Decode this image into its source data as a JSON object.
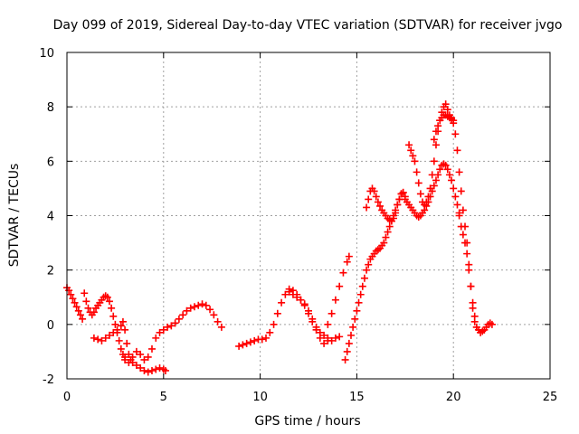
{
  "chart_data": {
    "type": "scatter",
    "title": "Day 099 of 2019, Sidereal Day-to-day VTEC variation (SDTVAR) for receiver jvgo",
    "xlabel": "GPS time / hours",
    "ylabel": "SDTVAR / TECUs",
    "xlim": [
      0,
      25
    ],
    "ylim": [
      -2,
      10
    ],
    "xticks": [
      "0",
      "5",
      "10",
      "15",
      "20",
      "25"
    ],
    "yticks": [
      "-2",
      "0",
      "2",
      "4",
      "6",
      "8",
      "10"
    ],
    "grid": true,
    "marker": "plus",
    "color": "#ff0000",
    "series": [
      {
        "x": [
          0.0,
          0.1,
          0.2,
          0.3,
          0.4,
          0.5,
          0.6,
          0.7,
          0.8
        ],
        "y": [
          1.35,
          1.25,
          1.1,
          0.95,
          0.8,
          0.65,
          0.5,
          0.35,
          0.2
        ]
      },
      {
        "x": [
          0.9,
          1.0,
          1.1,
          1.2,
          1.3,
          1.4,
          1.5,
          1.6,
          1.7,
          1.8,
          1.9,
          2.0,
          2.1,
          2.2,
          2.3,
          2.4,
          2.5,
          2.6,
          2.7,
          2.8,
          2.9,
          3.0
        ],
        "y": [
          1.15,
          0.85,
          0.6,
          0.45,
          0.35,
          0.45,
          0.6,
          0.7,
          0.8,
          0.9,
          1.0,
          1.05,
          1.0,
          0.85,
          0.6,
          0.3,
          0.0,
          -0.3,
          -0.6,
          -0.9,
          -1.1,
          -1.2
        ]
      },
      {
        "x": [
          1.4,
          1.6,
          1.8,
          2.0,
          2.2,
          2.4,
          2.6,
          2.8,
          2.9,
          3.0,
          3.1,
          3.2,
          3.3,
          3.4,
          3.6,
          3.8,
          4.0,
          4.2,
          4.4,
          4.6,
          4.8,
          5.0,
          5.1
        ],
        "y": [
          -0.5,
          -0.55,
          -0.6,
          -0.5,
          -0.4,
          -0.3,
          -0.2,
          -0.05,
          0.1,
          -0.2,
          -0.7,
          -1.1,
          -1.3,
          -1.4,
          -1.5,
          -1.6,
          -1.7,
          -1.75,
          -1.7,
          -1.65,
          -1.6,
          -1.65,
          -1.7
        ]
      },
      {
        "x": [
          3.0,
          3.2,
          3.4,
          3.6,
          3.8,
          4.0,
          4.2,
          4.4,
          4.6,
          4.8,
          5.0,
          5.2,
          5.4,
          5.6,
          5.8,
          6.0,
          6.2,
          6.4,
          6.6,
          6.8,
          7.0,
          7.2,
          7.4,
          7.6,
          7.8,
          8.0
        ],
        "y": [
          -1.3,
          -1.4,
          -1.2,
          -1.0,
          -1.1,
          -1.3,
          -1.2,
          -0.9,
          -0.5,
          -0.3,
          -0.2,
          -0.1,
          -0.05,
          0.05,
          0.2,
          0.35,
          0.5,
          0.6,
          0.65,
          0.7,
          0.75,
          0.7,
          0.55,
          0.35,
          0.1,
          -0.1
        ]
      },
      {
        "x": [
          8.9,
          9.1,
          9.3,
          9.5,
          9.7,
          9.9,
          10.1,
          10.3,
          10.5,
          10.7,
          10.9,
          11.1,
          11.3,
          11.5,
          11.7,
          11.9,
          12.1,
          12.3,
          12.5,
          12.7,
          12.9,
          13.1,
          13.3,
          13.5
        ],
        "y": [
          -0.8,
          -0.75,
          -0.7,
          -0.65,
          -0.6,
          -0.55,
          -0.55,
          -0.5,
          -0.3,
          0.0,
          0.4,
          0.8,
          1.1,
          1.3,
          1.25,
          1.1,
          0.9,
          0.7,
          0.4,
          0.1,
          -0.2,
          -0.5,
          -0.7,
          -0.6
        ]
      },
      {
        "x": [
          11.5,
          11.7,
          11.9,
          12.1,
          12.3,
          12.5,
          12.7,
          12.9,
          13.1,
          13.3,
          13.5,
          13.7,
          13.9,
          14.1
        ],
        "y": [
          1.2,
          1.1,
          1.0,
          0.9,
          0.75,
          0.5,
          0.2,
          -0.1,
          -0.3,
          -0.4,
          -0.5,
          -0.6,
          -0.5,
          -0.45
        ]
      },
      {
        "x": [
          13.5,
          13.7,
          13.9,
          14.1,
          14.3,
          14.5,
          14.6
        ],
        "y": [
          0.0,
          0.4,
          0.9,
          1.4,
          1.9,
          2.3,
          2.5
        ]
      },
      {
        "x": [
          14.4,
          14.5,
          14.6,
          14.7,
          14.8,
          14.9,
          15.0,
          15.1,
          15.2,
          15.3,
          15.4,
          15.5,
          15.6,
          15.7,
          15.8,
          15.9,
          16.0,
          16.1,
          16.2,
          16.3,
          16.4,
          16.5,
          16.6,
          16.7,
          16.8,
          16.9,
          17.0,
          17.1,
          17.2,
          17.3,
          17.4,
          17.5
        ],
        "y": [
          -1.3,
          -1.0,
          -0.7,
          -0.4,
          -0.1,
          0.2,
          0.5,
          0.8,
          1.1,
          1.4,
          1.7,
          2.0,
          2.2,
          2.4,
          2.5,
          2.6,
          2.7,
          2.75,
          2.8,
          2.9,
          3.0,
          3.2,
          3.4,
          3.6,
          3.8,
          4.0,
          4.2,
          4.4,
          4.6,
          4.8,
          4.85,
          4.7
        ]
      },
      {
        "x": [
          15.5,
          15.6,
          15.7,
          15.8,
          15.9,
          16.0,
          16.1,
          16.2,
          16.3,
          16.4,
          16.5,
          16.6,
          16.7,
          16.8,
          16.9,
          17.0,
          17.1,
          17.2,
          17.3,
          17.4
        ],
        "y": [
          4.3,
          4.6,
          4.9,
          5.0,
          4.9,
          4.7,
          4.5,
          4.35,
          4.2,
          4.1,
          4.0,
          3.9,
          3.85,
          3.8,
          3.9,
          4.1,
          4.4,
          4.6,
          4.8,
          4.85
        ]
      },
      {
        "x": [
          17.5,
          17.6,
          17.7,
          17.8,
          17.9,
          18.0,
          18.1,
          18.2,
          18.3,
          18.4,
          18.5,
          18.6,
          18.7,
          18.8,
          18.9,
          19.0,
          19.1,
          19.2,
          19.3,
          19.4,
          19.5,
          19.6,
          19.7,
          19.8,
          19.9,
          20.0,
          20.1,
          20.2,
          20.3
        ],
        "y": [
          4.6,
          4.5,
          4.4,
          4.3,
          4.2,
          4.1,
          4.0,
          3.95,
          4.0,
          4.1,
          4.2,
          4.35,
          4.5,
          4.7,
          4.9,
          5.1,
          5.3,
          5.5,
          5.7,
          5.85,
          5.9,
          5.85,
          5.7,
          5.5,
          5.3,
          5.0,
          4.7,
          4.4,
          4.1
        ]
      },
      {
        "x": [
          17.7,
          17.8,
          17.9,
          18.0,
          18.1,
          18.2,
          18.3,
          18.4,
          18.5,
          18.6,
          18.7,
          18.8,
          18.9,
          19.0,
          19.1,
          19.2,
          19.3,
          19.4,
          19.5,
          19.6,
          19.7,
          19.8,
          19.9,
          20.0
        ],
        "y": [
          6.6,
          6.4,
          6.2,
          6.0,
          5.6,
          5.2,
          4.8,
          4.5,
          4.4,
          4.5,
          4.7,
          5.0,
          5.5,
          6.0,
          6.6,
          7.1,
          7.5,
          7.8,
          8.0,
          8.1,
          7.9,
          7.7,
          7.6,
          7.5
        ]
      },
      {
        "x": [
          19.0,
          19.1,
          19.2,
          19.3,
          19.4,
          19.5,
          19.6,
          19.7,
          19.8,
          19.9,
          20.0,
          20.1,
          20.2,
          20.3,
          20.4,
          20.5,
          20.6,
          20.7,
          20.8,
          20.9,
          21.0,
          21.1,
          21.2,
          21.3,
          21.4,
          21.5,
          21.6,
          21.7,
          21.8,
          21.9,
          22.0
        ],
        "y": [
          6.8,
          7.1,
          7.3,
          7.5,
          7.6,
          7.7,
          7.7,
          7.65,
          7.6,
          7.55,
          7.4,
          7.0,
          6.4,
          5.6,
          4.9,
          4.2,
          3.6,
          3.0,
          2.2,
          1.4,
          0.6,
          0.1,
          -0.1,
          -0.2,
          -0.3,
          -0.25,
          -0.2,
          -0.1,
          0.0,
          0.05,
          0.0
        ]
      },
      {
        "x": [
          20.3,
          20.4,
          20.5,
          20.6,
          20.7,
          20.8,
          20.9,
          21.0,
          21.1,
          21.2
        ],
        "y": [
          4.0,
          3.6,
          3.3,
          3.0,
          2.6,
          2.0,
          1.4,
          0.8,
          0.3,
          -0.1
        ]
      }
    ]
  }
}
